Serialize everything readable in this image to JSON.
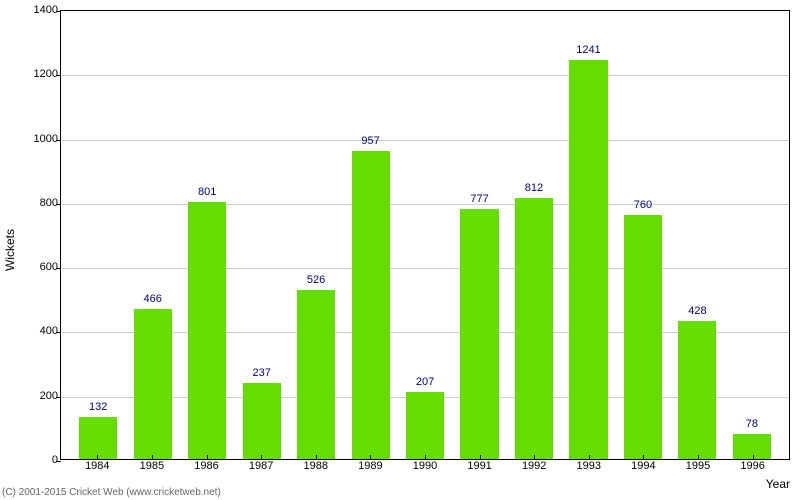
{
  "chart": {
    "type": "bar",
    "categories": [
      "1984",
      "1985",
      "1986",
      "1987",
      "1988",
      "1989",
      "1990",
      "1991",
      "1992",
      "1993",
      "1994",
      "1995",
      "1996"
    ],
    "values": [
      132,
      466,
      801,
      237,
      526,
      957,
      207,
      777,
      812,
      1241,
      760,
      428,
      78
    ],
    "bar_color": "#66dd00",
    "bar_label_color": "#000080",
    "background_color": "#ffffff",
    "grid_color": "#cccccc",
    "axis_color": "#000000",
    "ylabel": "Wickets",
    "xlabel": "Year",
    "ylim_min": 0,
    "ylim_max": 1400,
    "ytick_step": 200,
    "bar_width_ratio": 0.7,
    "label_fontsize": 12,
    "tick_fontsize": 11,
    "value_label_fontsize": 11
  },
  "footer": {
    "copyright": "(C) 2001-2015 Cricket Web (www.cricketweb.net)"
  }
}
